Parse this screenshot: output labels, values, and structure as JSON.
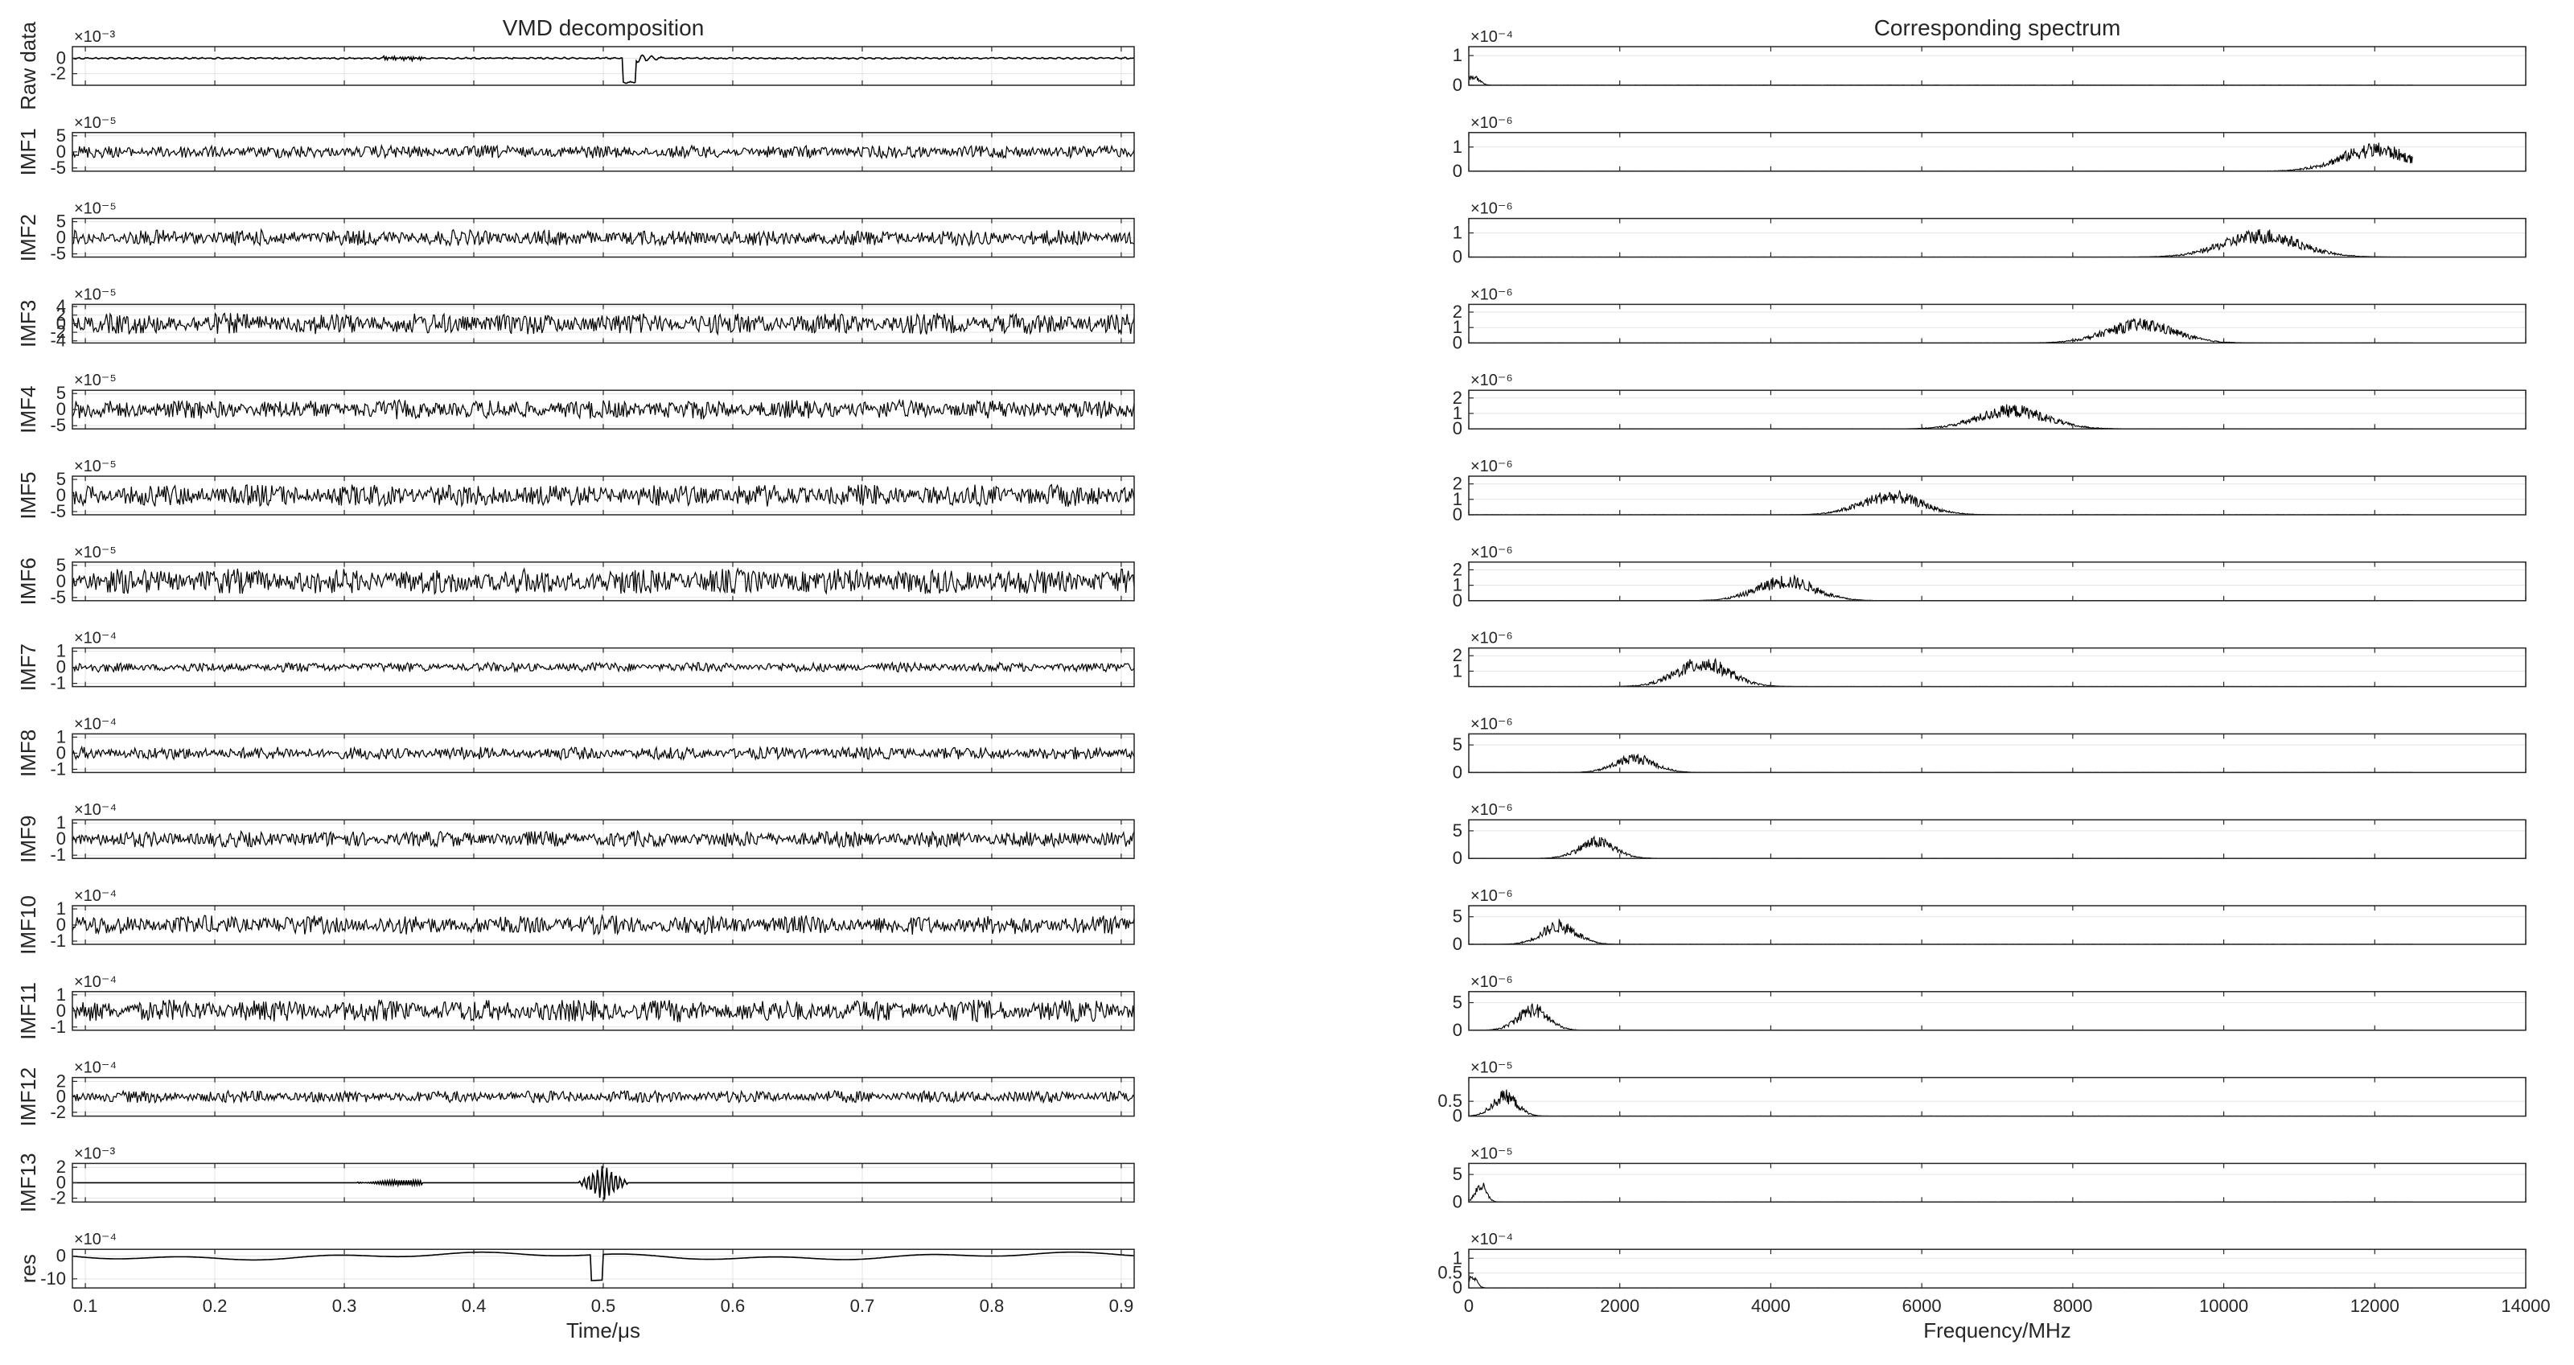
{
  "chart_data": [
    {
      "type": "line",
      "title": "VMD decomposition",
      "xlabel": "Time/μs",
      "xlim": [
        0.09,
        0.91
      ],
      "xticks": [
        "0.1",
        "0.2",
        "0.3",
        "0.4",
        "0.5",
        "0.6",
        "0.7",
        "0.8",
        "0.9"
      ],
      "grid": true,
      "series": [
        {
          "name": "Raw data",
          "exponent": "×10⁻³",
          "ylim": [
            -3.5,
            1.5
          ],
          "yticks": [
            {
              "v": 0,
              "label": "0"
            },
            {
              "v": -2,
              "label": "-2"
            }
          ],
          "amplitude": 0.5
        },
        {
          "name": "IMF1",
          "exponent": "×10⁻⁵",
          "ylim": [
            -6,
            6
          ],
          "yticks": [
            {
              "v": 5,
              "label": "5"
            },
            {
              "v": 0,
              "label": "0"
            },
            {
              "v": -5,
              "label": "-5"
            }
          ],
          "amplitude": 2
        },
        {
          "name": "IMF2",
          "exponent": "×10⁻⁵",
          "ylim": [
            -6,
            6
          ],
          "yticks": [
            {
              "v": 5,
              "label": "5"
            },
            {
              "v": 0,
              "label": "0"
            },
            {
              "v": -5,
              "label": "-5"
            }
          ],
          "amplitude": 2.5
        },
        {
          "name": "IMF3",
          "exponent": "×10⁻⁵",
          "ylim": [
            -4.5,
            4.5
          ],
          "yticks": [
            {
              "v": 4,
              "label": "4"
            },
            {
              "v": 2,
              "label": "2"
            },
            {
              "v": 0,
              "label": "0"
            },
            {
              "v": -2,
              "label": "-2"
            },
            {
              "v": -4,
              "label": "-4"
            }
          ],
          "amplitude": 2.5
        },
        {
          "name": "IMF4",
          "exponent": "×10⁻⁵",
          "ylim": [
            -6,
            6
          ],
          "yticks": [
            {
              "v": 5,
              "label": "5"
            },
            {
              "v": 0,
              "label": "0"
            },
            {
              "v": -5,
              "label": "-5"
            }
          ],
          "amplitude": 3
        },
        {
          "name": "IMF5",
          "exponent": "×10⁻⁵",
          "ylim": [
            -6,
            6
          ],
          "yticks": [
            {
              "v": 5,
              "label": "5"
            },
            {
              "v": 0,
              "label": "0"
            },
            {
              "v": -5,
              "label": "-5"
            }
          ],
          "amplitude": 3.5
        },
        {
          "name": "IMF6",
          "exponent": "×10⁻⁵",
          "ylim": [
            -6,
            6
          ],
          "yticks": [
            {
              "v": 5,
              "label": "5"
            },
            {
              "v": 0,
              "label": "0"
            },
            {
              "v": -5,
              "label": "-5"
            }
          ],
          "amplitude": 4
        },
        {
          "name": "IMF7",
          "exponent": "×10⁻⁴",
          "ylim": [
            -1.2,
            1.2
          ],
          "yticks": [
            {
              "v": 1,
              "label": "1"
            },
            {
              "v": 0,
              "label": "0"
            },
            {
              "v": -1,
              "label": "-1"
            }
          ],
          "amplitude": 0.3
        },
        {
          "name": "IMF8",
          "exponent": "×10⁻⁴",
          "ylim": [
            -1.2,
            1.2
          ],
          "yticks": [
            {
              "v": 1,
              "label": "1"
            },
            {
              "v": 0,
              "label": "0"
            },
            {
              "v": -1,
              "label": "-1"
            }
          ],
          "amplitude": 0.4
        },
        {
          "name": "IMF9",
          "exponent": "×10⁻⁴",
          "ylim": [
            -1.2,
            1.2
          ],
          "yticks": [
            {
              "v": 1,
              "label": "1"
            },
            {
              "v": 0,
              "label": "0"
            },
            {
              "v": -1,
              "label": "-1"
            }
          ],
          "amplitude": 0.5
        },
        {
          "name": "IMF10",
          "exponent": "×10⁻⁴",
          "ylim": [
            -1.2,
            1.2
          ],
          "yticks": [
            {
              "v": 1,
              "label": "1"
            },
            {
              "v": 0,
              "label": "0"
            },
            {
              "v": -1,
              "label": "-1"
            }
          ],
          "amplitude": 0.6
        },
        {
          "name": "IMF11",
          "exponent": "×10⁻⁴",
          "ylim": [
            -1.2,
            1.2
          ],
          "yticks": [
            {
              "v": 1,
              "label": "1"
            },
            {
              "v": 0,
              "label": "0"
            },
            {
              "v": -1,
              "label": "-1"
            }
          ],
          "amplitude": 0.7
        },
        {
          "name": "IMF12",
          "exponent": "×10⁻⁴",
          "ylim": [
            -2.5,
            2.5
          ],
          "yticks": [
            {
              "v": 2,
              "label": "2"
            },
            {
              "v": 0,
              "label": "0"
            },
            {
              "v": -2,
              "label": "-2"
            }
          ],
          "amplitude": 0.8
        },
        {
          "name": "IMF13",
          "exponent": "×10⁻³",
          "ylim": [
            -2.5,
            2.5
          ],
          "yticks": [
            {
              "v": 2,
              "label": "2"
            },
            {
              "v": 0,
              "label": "0"
            },
            {
              "v": -2,
              "label": "-2"
            }
          ],
          "amplitude": 0.03
        },
        {
          "name": "res",
          "exponent": "×10⁻⁴",
          "ylim": [
            -14,
            3
          ],
          "yticks": [
            {
              "v": 0,
              "label": "0"
            },
            {
              "v": -10,
              "label": "-10"
            }
          ],
          "amplitude": 1
        }
      ]
    },
    {
      "type": "line",
      "title": "Corresponding spectrum",
      "xlabel": "Frequency/MHz",
      "xlim": [
        0,
        14000
      ],
      "xticks": [
        "0",
        "2000",
        "4000",
        "6000",
        "8000",
        "10000",
        "12000",
        "14000"
      ],
      "data_xmax": 12500,
      "grid": true,
      "series": [
        {
          "exponent": "×10⁻⁴",
          "ylim": [
            0,
            1.3
          ],
          "yticks": [
            {
              "v": 1,
              "label": "1"
            },
            {
              "v": 0,
              "label": "0"
            }
          ],
          "peak_freq": 50,
          "peak_width": 80,
          "peak_height": 0.4
        },
        {
          "exponent": "×10⁻⁶",
          "ylim": [
            0,
            1.6
          ],
          "yticks": [
            {
              "v": 1,
              "label": "1"
            },
            {
              "v": 0,
              "label": "0"
            }
          ],
          "peak_freq": 12000,
          "peak_width": 450,
          "peak_height": 1.2
        },
        {
          "exponent": "×10⁻⁶",
          "ylim": [
            0,
            1.6
          ],
          "yticks": [
            {
              "v": 1,
              "label": "1"
            },
            {
              "v": 0,
              "label": "0"
            }
          ],
          "peak_freq": 10500,
          "peak_width": 500,
          "peak_height": 1.2
        },
        {
          "exponent": "×10⁻⁶",
          "ylim": [
            0,
            2.5
          ],
          "yticks": [
            {
              "v": 2,
              "label": "2"
            },
            {
              "v": 1,
              "label": "1"
            },
            {
              "v": 0,
              "label": "0"
            }
          ],
          "peak_freq": 8900,
          "peak_width": 450,
          "peak_height": 1.6
        },
        {
          "exponent": "×10⁻⁶",
          "ylim": [
            0,
            2.5
          ],
          "yticks": [
            {
              "v": 2,
              "label": "2"
            },
            {
              "v": 1,
              "label": "1"
            },
            {
              "v": 0,
              "label": "0"
            }
          ],
          "peak_freq": 7200,
          "peak_width": 450,
          "peak_height": 1.6
        },
        {
          "exponent": "×10⁻⁶",
          "ylim": [
            0,
            2.5
          ],
          "yticks": [
            {
              "v": 2,
              "label": "2"
            },
            {
              "v": 1,
              "label": "1"
            },
            {
              "v": 0,
              "label": "0"
            }
          ],
          "peak_freq": 5600,
          "peak_width": 400,
          "peak_height": 1.6
        },
        {
          "exponent": "×10⁻⁶",
          "ylim": [
            0,
            2.5
          ],
          "yticks": [
            {
              "v": 2,
              "label": "2"
            },
            {
              "v": 1,
              "label": "1"
            },
            {
              "v": 0,
              "label": "0"
            }
          ],
          "peak_freq": 4200,
          "peak_width": 380,
          "peak_height": 1.7
        },
        {
          "exponent": "×10⁻⁶",
          "ylim": [
            0,
            2.5
          ],
          "yticks": [
            {
              "v": 2,
              "label": "2"
            },
            {
              "v": 1,
              "label": "1"
            }
          ],
          "peak_freq": 3100,
          "peak_width": 350,
          "peak_height": 2.0
        },
        {
          "exponent": "×10⁻⁶",
          "ylim": [
            0,
            7
          ],
          "yticks": [
            {
              "v": 5,
              "label": "5"
            },
            {
              "v": 0,
              "label": "0"
            }
          ],
          "peak_freq": 2200,
          "peak_width": 260,
          "peak_height": 3.5
        },
        {
          "exponent": "×10⁻⁶",
          "ylim": [
            0,
            7
          ],
          "yticks": [
            {
              "v": 5,
              "label": "5"
            },
            {
              "v": 0,
              "label": "0"
            }
          ],
          "peak_freq": 1700,
          "peak_width": 240,
          "peak_height": 4.0
        },
        {
          "exponent": "×10⁻⁶",
          "ylim": [
            0,
            7
          ],
          "yticks": [
            {
              "v": 5,
              "label": "5"
            },
            {
              "v": 0,
              "label": "0"
            }
          ],
          "peak_freq": 1200,
          "peak_width": 230,
          "peak_height": 4.5
        },
        {
          "exponent": "×10⁻⁶",
          "ylim": [
            0,
            7
          ],
          "yticks": [
            {
              "v": 5,
              "label": "5"
            },
            {
              "v": 0,
              "label": "0"
            }
          ],
          "peak_freq": 850,
          "peak_width": 200,
          "peak_height": 5.0
        },
        {
          "exponent": "×10⁻⁵",
          "ylim": [
            0,
            1.3
          ],
          "yticks": [
            {
              "v": 0.5,
              "label": "0.5"
            },
            {
              "v": 0,
              "label": "0"
            }
          ],
          "peak_freq": 480,
          "peak_width": 160,
          "peak_height": 0.9
        },
        {
          "exponent": "×10⁻⁵",
          "ylim": [
            0,
            7
          ],
          "yticks": [
            {
              "v": 5,
              "label": "5"
            },
            {
              "v": 0,
              "label": "0"
            }
          ],
          "peak_freq": 160,
          "peak_width": 70,
          "peak_height": 4.0
        },
        {
          "exponent": "×10⁻⁴",
          "ylim": [
            0,
            1.3
          ],
          "yticks": [
            {
              "v": 1,
              "label": "1"
            },
            {
              "v": 0.5,
              "label": "0.5"
            },
            {
              "v": 0,
              "label": "0"
            }
          ],
          "peak_freq": 40,
          "peak_width": 60,
          "peak_height": 0.5
        }
      ]
    }
  ]
}
